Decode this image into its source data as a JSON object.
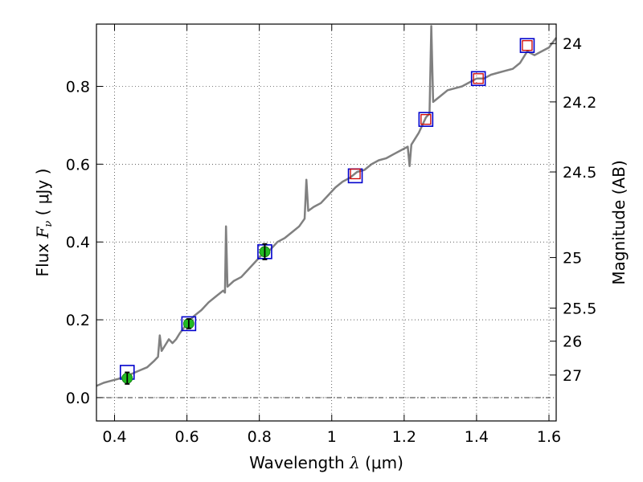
{
  "chart_data": {
    "type": "line",
    "xlabel": "Wavelength  λ (μm)",
    "xlabel_parts": {
      "prefix": "Wavelength  ",
      "symbol": "λ",
      "unit": " (μm)"
    },
    "ylabel": "Flux  Fν  ( μJy )",
    "ylabel_parts": {
      "prefix": "Flux  ",
      "symbol": "F",
      "sub": "ν",
      "unit": "  ( μJy )"
    },
    "y2label": "Magnitude (AB)",
    "xlim": [
      0.35,
      1.62
    ],
    "ylim": [
      -0.06,
      0.96
    ],
    "x_ticks": [
      {
        "value": 0.4,
        "label": "0.4"
      },
      {
        "value": 0.6,
        "label": "0.6"
      },
      {
        "value": 0.8,
        "label": "0.8"
      },
      {
        "value": 1.0,
        "label": "1"
      },
      {
        "value": 1.2,
        "label": "1.2"
      },
      {
        "value": 1.4,
        "label": "1.4"
      },
      {
        "value": 1.6,
        "label": "1.6"
      }
    ],
    "y_ticks": [
      {
        "value": 0.0,
        "label": "0.0"
      },
      {
        "value": 0.2,
        "label": "0.2"
      },
      {
        "value": 0.4,
        "label": "0.4"
      },
      {
        "value": 0.6,
        "label": "0.6"
      },
      {
        "value": 0.8,
        "label": "0.8"
      }
    ],
    "y2_ticks": [
      {
        "flux": 0.91,
        "label": "24"
      },
      {
        "flux": 0.76,
        "label": "24.2"
      },
      {
        "flux": 0.58,
        "label": "24.5"
      },
      {
        "flux": 0.36,
        "label": "25"
      },
      {
        "flux": 0.23,
        "label": "25.5"
      },
      {
        "flux": 0.145,
        "label": "26"
      },
      {
        "flux": 0.058,
        "label": "27"
      }
    ],
    "grid": true,
    "zero_line": 0.0,
    "colors": {
      "spectrum": "#808080",
      "model_box": "#0000cc",
      "observed_box": "#cc0000",
      "measured_point": "#22bb22",
      "error_bar": "#000000"
    },
    "series": [
      {
        "name": "spectrum",
        "kind": "line",
        "points": [
          [
            0.35,
            0.03
          ],
          [
            0.37,
            0.038
          ],
          [
            0.39,
            0.043
          ],
          [
            0.41,
            0.048
          ],
          [
            0.43,
            0.055
          ],
          [
            0.45,
            0.062
          ],
          [
            0.47,
            0.07
          ],
          [
            0.49,
            0.078
          ],
          [
            0.51,
            0.095
          ],
          [
            0.52,
            0.105
          ],
          [
            0.525,
            0.16
          ],
          [
            0.53,
            0.12
          ],
          [
            0.54,
            0.135
          ],
          [
            0.55,
            0.15
          ],
          [
            0.56,
            0.14
          ],
          [
            0.57,
            0.15
          ],
          [
            0.58,
            0.165
          ],
          [
            0.6,
            0.19
          ],
          [
            0.62,
            0.21
          ],
          [
            0.64,
            0.225
          ],
          [
            0.66,
            0.245
          ],
          [
            0.68,
            0.26
          ],
          [
            0.7,
            0.275
          ],
          [
            0.705,
            0.27
          ],
          [
            0.708,
            0.44
          ],
          [
            0.712,
            0.285
          ],
          [
            0.73,
            0.3
          ],
          [
            0.75,
            0.31
          ],
          [
            0.77,
            0.33
          ],
          [
            0.79,
            0.35
          ],
          [
            0.81,
            0.37
          ],
          [
            0.83,
            0.38
          ],
          [
            0.85,
            0.4
          ],
          [
            0.87,
            0.41
          ],
          [
            0.89,
            0.425
          ],
          [
            0.91,
            0.44
          ],
          [
            0.925,
            0.46
          ],
          [
            0.93,
            0.56
          ],
          [
            0.935,
            0.48
          ],
          [
            0.95,
            0.49
          ],
          [
            0.97,
            0.5
          ],
          [
            0.99,
            0.52
          ],
          [
            1.01,
            0.54
          ],
          [
            1.03,
            0.555
          ],
          [
            1.05,
            0.565
          ],
          [
            1.07,
            0.58
          ],
          [
            1.09,
            0.585
          ],
          [
            1.11,
            0.6
          ],
          [
            1.13,
            0.61
          ],
          [
            1.15,
            0.615
          ],
          [
            1.17,
            0.625
          ],
          [
            1.19,
            0.635
          ],
          [
            1.21,
            0.645
          ],
          [
            1.215,
            0.595
          ],
          [
            1.22,
            0.65
          ],
          [
            1.24,
            0.68
          ],
          [
            1.26,
            0.72
          ],
          [
            1.27,
            0.73
          ],
          [
            1.275,
            0.955
          ],
          [
            1.28,
            0.76
          ],
          [
            1.3,
            0.775
          ],
          [
            1.32,
            0.79
          ],
          [
            1.34,
            0.795
          ],
          [
            1.36,
            0.8
          ],
          [
            1.38,
            0.81
          ],
          [
            1.4,
            0.82
          ],
          [
            1.42,
            0.82
          ],
          [
            1.44,
            0.83
          ],
          [
            1.46,
            0.835
          ],
          [
            1.48,
            0.84
          ],
          [
            1.5,
            0.845
          ],
          [
            1.52,
            0.86
          ],
          [
            1.54,
            0.89
          ],
          [
            1.56,
            0.88
          ],
          [
            1.58,
            0.89
          ],
          [
            1.6,
            0.9
          ],
          [
            1.62,
            0.925
          ]
        ]
      },
      {
        "name": "model photometry",
        "kind": "open_square_blue",
        "points": [
          [
            0.435,
            0.065
          ],
          [
            0.605,
            0.19
          ],
          [
            0.815,
            0.375
          ],
          [
            1.065,
            0.57
          ],
          [
            1.26,
            0.715
          ],
          [
            1.405,
            0.82
          ],
          [
            1.54,
            0.905
          ]
        ]
      },
      {
        "name": "observed photometry (upper)",
        "kind": "open_square_red",
        "points": [
          [
            1.065,
            0.575
          ],
          [
            1.26,
            0.715
          ],
          [
            1.405,
            0.82
          ],
          [
            1.54,
            0.905
          ]
        ]
      },
      {
        "name": "measured photometry",
        "kind": "filled_circle_green",
        "points": [
          [
            0.435,
            0.05,
            0.015
          ],
          [
            0.605,
            0.19,
            0.012
          ],
          [
            0.815,
            0.375,
            0.02
          ]
        ]
      }
    ]
  }
}
